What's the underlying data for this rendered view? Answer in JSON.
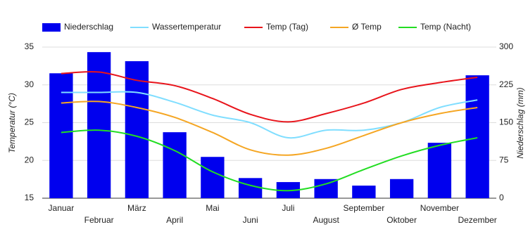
{
  "chart_data": {
    "type": "combo",
    "categories": [
      "Januar",
      "Februar",
      "März",
      "April",
      "Mai",
      "Juni",
      "Juli",
      "August",
      "September",
      "Oktober",
      "November",
      "Dezember"
    ],
    "series": [
      {
        "name": "Niederschlag",
        "type": "bar",
        "axis": "y2",
        "color": "#0000ee",
        "values": [
          248,
          290,
          272,
          131,
          82,
          40,
          32,
          38,
          25,
          38,
          110,
          244
        ]
      },
      {
        "name": "Wassertemperatur",
        "type": "line",
        "color": "#80deff",
        "values": [
          29.0,
          29.0,
          29.0,
          27.7,
          26.0,
          25.0,
          23.0,
          24.0,
          24.0,
          25.0,
          27.0,
          28.0
        ]
      },
      {
        "name": "Temp (Tag)",
        "type": "line",
        "color": "#e8141b",
        "values": [
          31.5,
          31.7,
          30.6,
          29.9,
          28.2,
          26.1,
          25.1,
          26.2,
          27.6,
          29.4,
          30.3,
          31.0
        ]
      },
      {
        "name": "Ø Temp",
        "type": "line",
        "color": "#f5a623",
        "values": [
          27.6,
          27.8,
          27.0,
          25.7,
          23.7,
          21.4,
          20.7,
          21.6,
          23.3,
          25.0,
          26.2,
          27.0
        ]
      },
      {
        "name": "Temp (Nacht)",
        "type": "line",
        "color": "#22dd22",
        "values": [
          23.7,
          24.0,
          23.2,
          21.3,
          18.5,
          16.7,
          16.0,
          16.9,
          18.8,
          20.6,
          22.0,
          23.0
        ]
      }
    ],
    "ylabel": "Temperatur (°C)",
    "y2label": "Niederschlag (mm)",
    "ylim": [
      15,
      35
    ],
    "yticks": [
      15,
      20,
      25,
      30,
      35
    ],
    "y2lim": [
      0,
      300
    ],
    "y2ticks": [
      0,
      75,
      150,
      225,
      300
    ],
    "grid": true,
    "legend": "top"
  }
}
